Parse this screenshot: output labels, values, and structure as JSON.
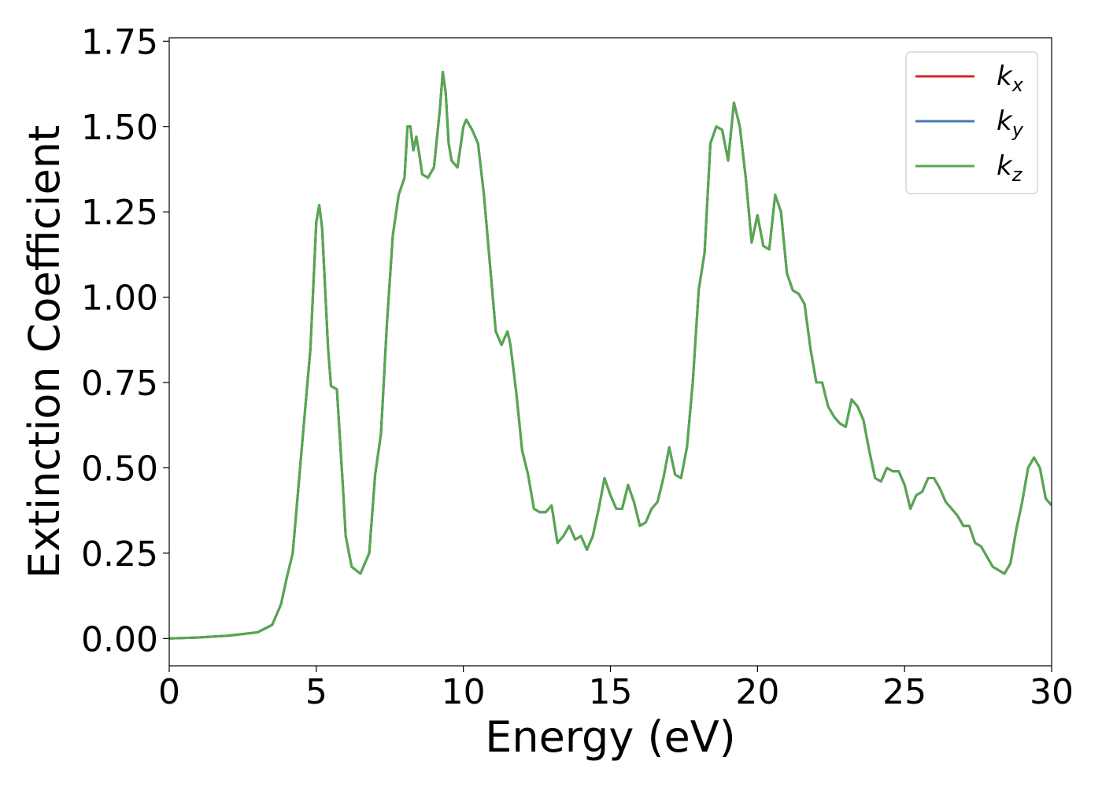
{
  "chart_data": {
    "type": "line",
    "title": "",
    "xlabel": "Energy (eV)",
    "ylabel": "Extinction Coefficient",
    "xlim": [
      0,
      30
    ],
    "ylim": [
      -0.08,
      1.76
    ],
    "xticks": [
      0,
      5,
      10,
      15,
      20,
      25,
      30
    ],
    "xtick_labels": [
      "0",
      "5",
      "10",
      "15",
      "20",
      "25",
      "30"
    ],
    "yticks": [
      0.0,
      0.25,
      0.5,
      0.75,
      1.0,
      1.25,
      1.5,
      1.75
    ],
    "ytick_labels": [
      "0.00",
      "0.25",
      "0.50",
      "0.75",
      "1.00",
      "1.25",
      "1.50",
      "1.75"
    ],
    "grid": false,
    "legend_position": "top-right",
    "x": [
      0.0,
      1.0,
      2.0,
      3.0,
      3.5,
      3.8,
      4.0,
      4.2,
      4.5,
      4.8,
      5.0,
      5.1,
      5.2,
      5.4,
      5.5,
      5.7,
      5.9,
      6.0,
      6.2,
      6.5,
      6.8,
      7.0,
      7.2,
      7.4,
      7.6,
      7.8,
      8.0,
      8.1,
      8.2,
      8.3,
      8.4,
      8.5,
      8.6,
      8.8,
      9.0,
      9.2,
      9.3,
      9.4,
      9.5,
      9.6,
      9.8,
      10.0,
      10.1,
      10.3,
      10.5,
      10.7,
      10.9,
      11.1,
      11.3,
      11.5,
      11.6,
      11.8,
      12.0,
      12.2,
      12.4,
      12.6,
      12.8,
      13.0,
      13.2,
      13.4,
      13.6,
      13.8,
      14.0,
      14.2,
      14.4,
      14.6,
      14.8,
      15.0,
      15.2,
      15.4,
      15.6,
      15.8,
      16.0,
      16.2,
      16.4,
      16.6,
      16.8,
      17.0,
      17.2,
      17.4,
      17.6,
      17.8,
      18.0,
      18.2,
      18.4,
      18.6,
      18.8,
      19.0,
      19.2,
      19.4,
      19.6,
      19.8,
      20.0,
      20.2,
      20.4,
      20.6,
      20.8,
      21.0,
      21.2,
      21.4,
      21.6,
      21.8,
      22.0,
      22.2,
      22.4,
      22.6,
      22.8,
      23.0,
      23.2,
      23.4,
      23.6,
      23.8,
      24.0,
      24.2,
      24.4,
      24.6,
      24.8,
      25.0,
      25.2,
      25.4,
      25.6,
      25.8,
      26.0,
      26.2,
      26.4,
      26.6,
      26.8,
      27.0,
      27.2,
      27.4,
      27.6,
      27.8,
      28.0,
      28.2,
      28.4,
      28.6,
      28.8,
      29.0,
      29.2,
      29.4,
      29.6,
      29.8,
      30.0
    ],
    "series": [
      {
        "name": "k_x",
        "color": "#d62728",
        "values": "same_as_kz"
      },
      {
        "name": "k_y",
        "color": "#4878b0",
        "values": "same_as_kz"
      },
      {
        "name": "k_z",
        "color": "#55a84f",
        "values": [
          0.0,
          0.003,
          0.008,
          0.018,
          0.04,
          0.1,
          0.18,
          0.25,
          0.55,
          0.85,
          1.22,
          1.27,
          1.2,
          0.85,
          0.74,
          0.73,
          0.45,
          0.3,
          0.21,
          0.19,
          0.25,
          0.48,
          0.6,
          0.92,
          1.18,
          1.3,
          1.35,
          1.5,
          1.5,
          1.43,
          1.47,
          1.42,
          1.36,
          1.35,
          1.38,
          1.55,
          1.66,
          1.6,
          1.45,
          1.4,
          1.38,
          1.5,
          1.52,
          1.49,
          1.45,
          1.3,
          1.1,
          0.9,
          0.86,
          0.9,
          0.86,
          0.72,
          0.55,
          0.48,
          0.38,
          0.37,
          0.37,
          0.39,
          0.28,
          0.3,
          0.33,
          0.29,
          0.3,
          0.26,
          0.3,
          0.38,
          0.47,
          0.42,
          0.38,
          0.38,
          0.45,
          0.4,
          0.33,
          0.34,
          0.38,
          0.4,
          0.47,
          0.56,
          0.48,
          0.47,
          0.56,
          0.75,
          1.02,
          1.13,
          1.45,
          1.5,
          1.49,
          1.4,
          1.57,
          1.5,
          1.35,
          1.16,
          1.24,
          1.15,
          1.14,
          1.3,
          1.25,
          1.07,
          1.02,
          1.01,
          0.98,
          0.85,
          0.75,
          0.75,
          0.68,
          0.65,
          0.63,
          0.62,
          0.7,
          0.68,
          0.64,
          0.55,
          0.47,
          0.46,
          0.5,
          0.49,
          0.49,
          0.45,
          0.38,
          0.42,
          0.43,
          0.47,
          0.47,
          0.44,
          0.4,
          0.38,
          0.36,
          0.33,
          0.33,
          0.28,
          0.27,
          0.24,
          0.21,
          0.2,
          0.19,
          0.22,
          0.32,
          0.4,
          0.5,
          0.53,
          0.5,
          0.41,
          0.39
        ]
      }
    ]
  },
  "legend": {
    "items": [
      {
        "base": "k",
        "sub": "x",
        "color": "#d62728"
      },
      {
        "base": "k",
        "sub": "y",
        "color": "#4878b0"
      },
      {
        "base": "k",
        "sub": "z",
        "color": "#55a84f"
      }
    ]
  }
}
